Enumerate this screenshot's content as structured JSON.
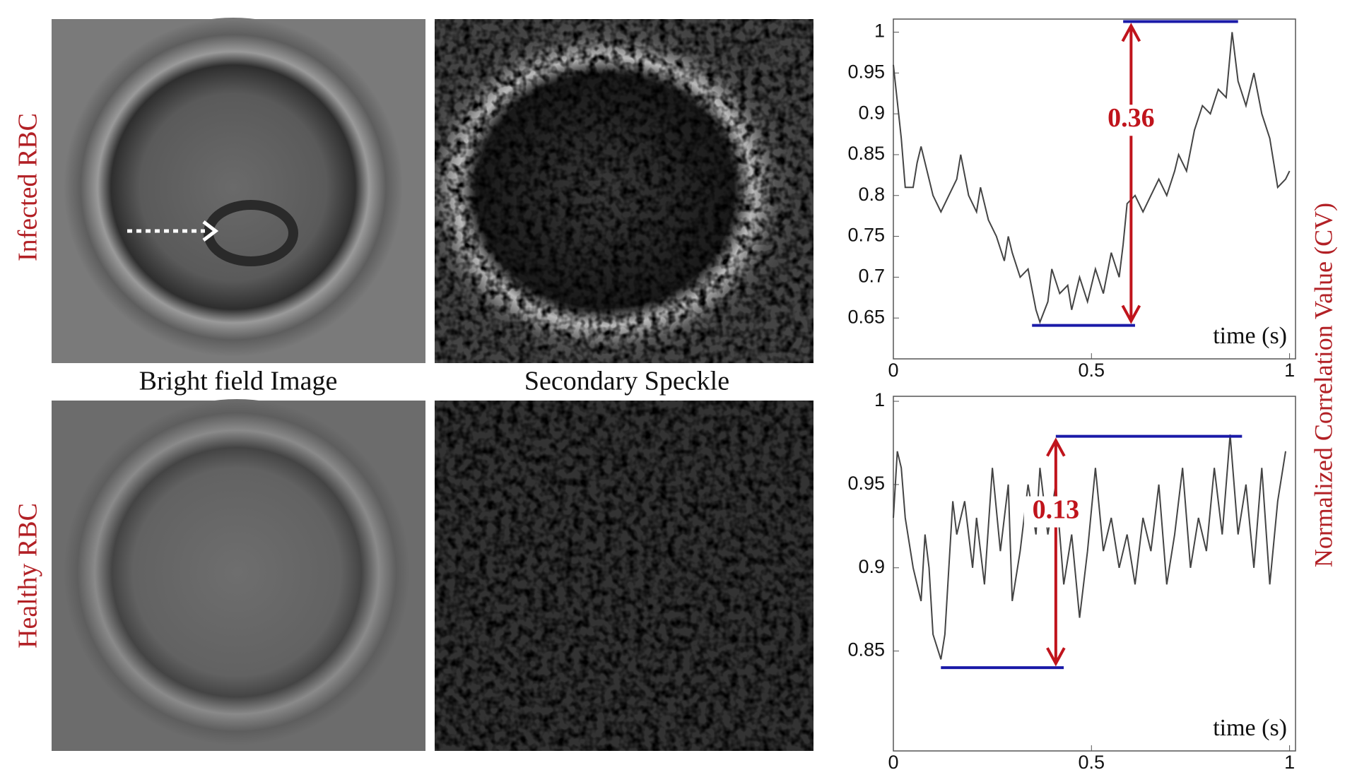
{
  "figure": {
    "row_labels": [
      "Infected RBC",
      "Healthy RBC"
    ],
    "captions": [
      "Bright field Image",
      "Secondary Speckle"
    ],
    "ylabel": "Normalized Correlation Value (CV)"
  },
  "chart_data": [
    {
      "type": "line",
      "xlabel": "time (s)",
      "color": "#444444",
      "xlim": [
        0,
        1.015
      ],
      "ylim": [
        0.6,
        1.016
      ],
      "xticks": [
        0,
        0.5,
        1
      ],
      "yticks": [
        0.65,
        0.7,
        0.75,
        0.8,
        0.85,
        0.9,
        0.95,
        1
      ],
      "x": [
        0,
        0.02,
        0.03,
        0.05,
        0.06,
        0.07,
        0.09,
        0.1,
        0.12,
        0.14,
        0.16,
        0.17,
        0.19,
        0.21,
        0.22,
        0.24,
        0.26,
        0.28,
        0.29,
        0.3,
        0.32,
        0.34,
        0.36,
        0.37,
        0.39,
        0.4,
        0.42,
        0.44,
        0.45,
        0.47,
        0.49,
        0.51,
        0.53,
        0.55,
        0.57,
        0.58,
        0.59,
        0.61,
        0.63,
        0.65,
        0.67,
        0.69,
        0.71,
        0.72,
        0.74,
        0.76,
        0.78,
        0.8,
        0.82,
        0.84,
        0.855,
        0.87,
        0.89,
        0.91,
        0.93,
        0.95,
        0.97,
        0.99,
        1
      ],
      "values": [
        0.96,
        0.87,
        0.81,
        0.81,
        0.84,
        0.86,
        0.82,
        0.8,
        0.78,
        0.8,
        0.82,
        0.85,
        0.8,
        0.78,
        0.81,
        0.77,
        0.75,
        0.72,
        0.75,
        0.73,
        0.7,
        0.71,
        0.66,
        0.645,
        0.67,
        0.71,
        0.68,
        0.69,
        0.66,
        0.7,
        0.67,
        0.71,
        0.68,
        0.73,
        0.7,
        0.74,
        0.79,
        0.8,
        0.78,
        0.8,
        0.82,
        0.8,
        0.83,
        0.85,
        0.83,
        0.88,
        0.91,
        0.9,
        0.93,
        0.92,
        1.0,
        0.94,
        0.91,
        0.95,
        0.9,
        0.87,
        0.81,
        0.82,
        0.83
      ],
      "bracket": {
        "color": "#1a1aa8",
        "arrow_color": "#c0141c",
        "label": "0.36",
        "low": 0.641,
        "high": 1.013,
        "low_x": [
          0.35,
          0.61
        ],
        "high_x": [
          0.58,
          0.87
        ],
        "arrow_x": 0.6
      }
    },
    {
      "type": "line",
      "xlabel": "time (s)",
      "color": "#444444",
      "xlim": [
        0,
        1.015
      ],
      "ylim": [
        0.79,
        1.003
      ],
      "xticks": [
        0,
        0.5,
        1
      ],
      "yticks": [
        0.85,
        0.9,
        0.95,
        1
      ],
      "x": [
        0,
        0.01,
        0.02,
        0.03,
        0.05,
        0.07,
        0.08,
        0.09,
        0.1,
        0.12,
        0.13,
        0.15,
        0.16,
        0.18,
        0.2,
        0.21,
        0.23,
        0.25,
        0.27,
        0.29,
        0.3,
        0.32,
        0.34,
        0.36,
        0.37,
        0.39,
        0.41,
        0.43,
        0.45,
        0.47,
        0.49,
        0.51,
        0.53,
        0.55,
        0.57,
        0.59,
        0.61,
        0.63,
        0.65,
        0.67,
        0.69,
        0.71,
        0.73,
        0.75,
        0.77,
        0.79,
        0.81,
        0.83,
        0.85,
        0.87,
        0.89,
        0.91,
        0.93,
        0.95,
        0.97,
        0.99
      ],
      "values": [
        0.93,
        0.97,
        0.96,
        0.93,
        0.9,
        0.88,
        0.92,
        0.9,
        0.86,
        0.845,
        0.86,
        0.94,
        0.92,
        0.94,
        0.9,
        0.93,
        0.89,
        0.96,
        0.91,
        0.95,
        0.88,
        0.91,
        0.95,
        0.92,
        0.96,
        0.92,
        0.95,
        0.89,
        0.92,
        0.87,
        0.91,
        0.96,
        0.91,
        0.93,
        0.9,
        0.92,
        0.89,
        0.93,
        0.91,
        0.95,
        0.89,
        0.92,
        0.96,
        0.9,
        0.93,
        0.91,
        0.96,
        0.92,
        0.98,
        0.92,
        0.95,
        0.9,
        0.96,
        0.89,
        0.94,
        0.97
      ],
      "bracket": {
        "color": "#1a1aa8",
        "arrow_color": "#c0141c",
        "label": "0.13",
        "low": 0.84,
        "high": 0.979,
        "low_x": [
          0.12,
          0.43
        ],
        "high_x": [
          0.41,
          0.88
        ],
        "arrow_x": 0.41
      }
    }
  ]
}
